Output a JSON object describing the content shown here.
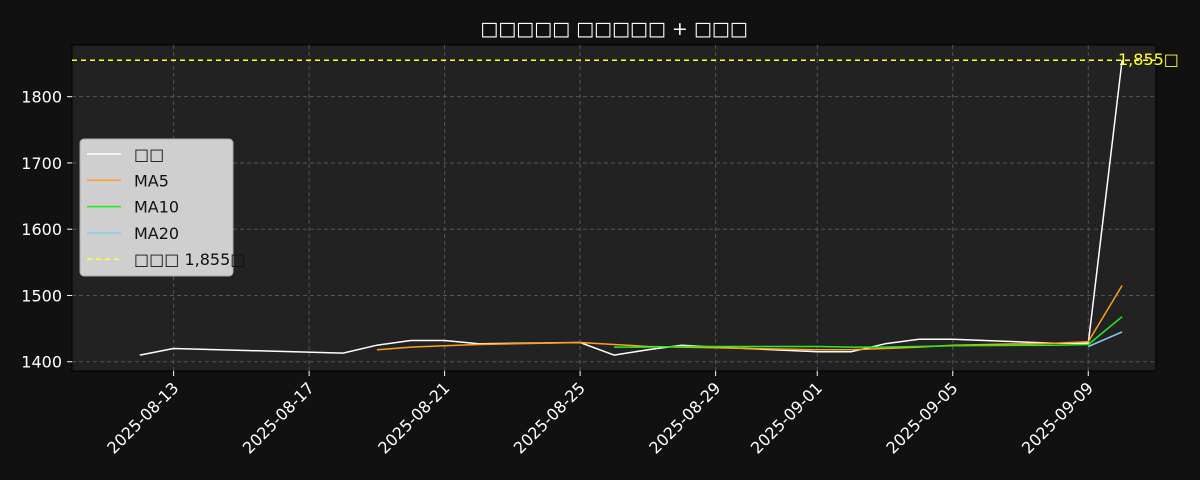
{
  "chart_data": {
    "type": "line",
    "title": "□□□□□ □□□□□ + □□□",
    "xlabel": "",
    "ylabel": "",
    "ylim": [
      1386,
      1878
    ],
    "y_ticks": [
      1400,
      1500,
      1600,
      1700,
      1800
    ],
    "x_range": [
      "2025-08-10",
      "2025-09-11"
    ],
    "x_ticks": [
      "2025-08-13",
      "2025-08-17",
      "2025-08-21",
      "2025-08-25",
      "2025-08-29",
      "2025-09-01",
      "2025-09-05",
      "2025-09-09"
    ],
    "grid": true,
    "legend_position": "center-left",
    "series": [
      {
        "name": "□□",
        "color": "#ffffff",
        "points": [
          [
            "2025-08-12",
            1410
          ],
          [
            "2025-08-13",
            1420
          ],
          [
            "2025-08-18",
            1413
          ],
          [
            "2025-08-19",
            1425
          ],
          [
            "2025-08-20",
            1432
          ],
          [
            "2025-08-21",
            1432
          ],
          [
            "2025-08-22",
            1427
          ],
          [
            "2025-08-25",
            1429
          ],
          [
            "2025-08-26",
            1410
          ],
          [
            "2025-08-27",
            1418
          ],
          [
            "2025-08-28",
            1425
          ],
          [
            "2025-08-29",
            1422
          ],
          [
            "2025-09-01",
            1415
          ],
          [
            "2025-09-02",
            1415
          ],
          [
            "2025-09-03",
            1427
          ],
          [
            "2025-09-04",
            1434
          ],
          [
            "2025-09-05",
            1434
          ],
          [
            "2025-09-08",
            1428
          ],
          [
            "2025-09-09",
            1428
          ],
          [
            "2025-09-10",
            1855
          ]
        ]
      },
      {
        "name": "MA5",
        "color": "#ff9f1c",
        "points": [
          [
            "2025-08-19",
            1418
          ],
          [
            "2025-08-20",
            1422
          ],
          [
            "2025-08-21",
            1424
          ],
          [
            "2025-08-22",
            1426
          ],
          [
            "2025-08-25",
            1429
          ],
          [
            "2025-08-26",
            1426
          ],
          [
            "2025-08-27",
            1423
          ],
          [
            "2025-08-28",
            1422
          ],
          [
            "2025-08-29",
            1421
          ],
          [
            "2025-09-01",
            1418
          ],
          [
            "2025-09-02",
            1418
          ],
          [
            "2025-09-03",
            1420
          ],
          [
            "2025-09-04",
            1422
          ],
          [
            "2025-09-05",
            1425
          ],
          [
            "2025-09-08",
            1428
          ],
          [
            "2025-09-09",
            1430
          ],
          [
            "2025-09-10",
            1515
          ]
        ]
      },
      {
        "name": "MA10",
        "color": "#22ee22",
        "points": [
          [
            "2025-08-26",
            1422
          ],
          [
            "2025-08-27",
            1422
          ],
          [
            "2025-08-28",
            1423
          ],
          [
            "2025-08-29",
            1423
          ],
          [
            "2025-09-01",
            1423
          ],
          [
            "2025-09-02",
            1422
          ],
          [
            "2025-09-03",
            1422
          ],
          [
            "2025-09-04",
            1423
          ],
          [
            "2025-09-05",
            1424
          ],
          [
            "2025-09-08",
            1425
          ],
          [
            "2025-09-09",
            1426
          ],
          [
            "2025-09-10",
            1468
          ]
        ]
      },
      {
        "name": "MA20",
        "color": "#87ceeb",
        "points": [
          [
            "2025-09-09",
            1423
          ],
          [
            "2025-09-10",
            1445
          ]
        ]
      }
    ],
    "reference_line": {
      "name": "□□□ 1,855□",
      "value": 1855,
      "color": "#ffff33",
      "label": "1,855□"
    }
  }
}
